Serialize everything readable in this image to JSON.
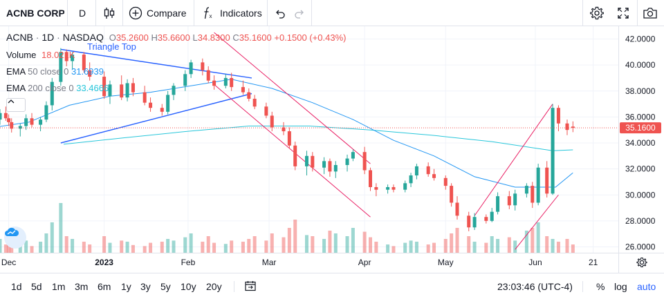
{
  "toolbar": {
    "symbol": "ACNB CORP",
    "interval": "D",
    "compare_label": "Compare",
    "indicators_label": "Indicators",
    "icons": [
      "candles-icon",
      "plus-circle-icon",
      "fx-icon",
      "undo-icon",
      "redo-icon",
      "settings-icon",
      "fullscreen-icon",
      "camera-icon"
    ]
  },
  "legend": {
    "ticker": "ACNB",
    "interval": "1D",
    "exchange": "NASDAQ",
    "open_label": "O",
    "open": "35.2600",
    "high_label": "H",
    "high": "35.6600",
    "low_label": "L",
    "low": "34.8300",
    "close_label": "C",
    "close": "35.1600",
    "change": "+0.1500 (+0.43%)",
    "volume_label": "Volume",
    "volume": "18.021K",
    "ema50_label": "EMA",
    "ema50_params": "50 close 0",
    "ema50_value": "31.6939",
    "ema200_label": "EMA",
    "ema200_params": "200 close 0",
    "ema200_value": "33.4666"
  },
  "annotations": {
    "pattern_label": "Triangle Top"
  },
  "price_axis": {
    "ticks": [
      "42.0000",
      "40.0000",
      "38.0000",
      "36.0000",
      "34.0000",
      "32.0000",
      "30.0000",
      "28.0000",
      "26.0000"
    ],
    "last_price": "35.1600"
  },
  "time_axis": {
    "ticks": [
      "Dec",
      "2023",
      "Feb",
      "Mar",
      "Apr",
      "May",
      "Jun",
      "21"
    ]
  },
  "bottombar": {
    "ranges": [
      "1d",
      "5d",
      "1m",
      "3m",
      "6m",
      "1y",
      "3y",
      "5y",
      "10y",
      "20y"
    ],
    "clock": "23:03:46 (UTC-4)",
    "percent_label": "%",
    "log_label": "log",
    "auto_label": "auto"
  },
  "colors": {
    "up": "#26a69a",
    "down": "#ef5350",
    "ema50": "#2196f3",
    "ema200": "#26c6da",
    "pattern": "#2962ff",
    "channel": "#e91e63",
    "accent": "#2962ff"
  },
  "chart_data": {
    "type": "candlestick",
    "y_range": [
      25.5,
      42.8
    ],
    "x_range": [
      "2022-11-28",
      "2023-06-23"
    ],
    "candles": [
      [
        "2022-11-28",
        35.8,
        36.6,
        35.4,
        36.3
      ],
      [
        "2022-11-30",
        36.3,
        36.8,
        35.7,
        35.9
      ],
      [
        "2022-12-01",
        35.9,
        36.2,
        35.3,
        35.6
      ],
      [
        "2022-12-02",
        35.6,
        35.9,
        34.8,
        35.1
      ],
      [
        "2022-12-05",
        35.1,
        35.5,
        34.5,
        35.3
      ],
      [
        "2022-12-07",
        35.3,
        36.2,
        35.0,
        35.9
      ],
      [
        "2022-12-09",
        35.9,
        36.3,
        35.2,
        35.4
      ],
      [
        "2022-12-12",
        35.4,
        36.0,
        34.9,
        35.8
      ],
      [
        "2022-12-14",
        35.8,
        37.2,
        35.6,
        36.9
      ],
      [
        "2022-12-16",
        36.9,
        39.0,
        36.5,
        38.7
      ],
      [
        "2022-12-19",
        38.7,
        41.3,
        38.4,
        41.0
      ],
      [
        "2022-12-21",
        41.0,
        41.2,
        39.9,
        40.3
      ],
      [
        "2022-12-23",
        40.3,
        41.0,
        39.7,
        40.8
      ],
      [
        "2022-12-27",
        40.8,
        41.0,
        39.4,
        39.6
      ],
      [
        "2022-12-29",
        39.6,
        40.2,
        38.8,
        39.1
      ],
      [
        "2023-01-03",
        39.1,
        39.5,
        37.4,
        37.6
      ],
      [
        "2023-01-05",
        37.6,
        38.8,
        37.0,
        38.5
      ],
      [
        "2023-01-09",
        38.5,
        39.2,
        37.3,
        37.5
      ],
      [
        "2023-01-11",
        37.5,
        38.9,
        37.2,
        38.6
      ],
      [
        "2023-01-13",
        38.6,
        39.0,
        37.6,
        37.9
      ],
      [
        "2023-01-17",
        37.9,
        38.4,
        36.9,
        37.1
      ],
      [
        "2023-01-19",
        37.1,
        37.5,
        36.4,
        36.7
      ],
      [
        "2023-01-23",
        36.7,
        37.0,
        36.1,
        36.4
      ],
      [
        "2023-01-25",
        36.4,
        38.0,
        36.2,
        37.7
      ],
      [
        "2023-01-27",
        37.7,
        38.6,
        37.3,
        38.4
      ],
      [
        "2023-01-31",
        38.4,
        39.6,
        38.0,
        39.3
      ],
      [
        "2023-02-02",
        39.3,
        40.4,
        39.0,
        40.2
      ],
      [
        "2023-02-06",
        40.2,
        40.5,
        39.2,
        39.6
      ],
      [
        "2023-02-08",
        39.6,
        39.9,
        38.6,
        38.8
      ],
      [
        "2023-02-10",
        38.8,
        39.2,
        38.1,
        38.4
      ],
      [
        "2023-02-14",
        38.4,
        39.3,
        38.2,
        39.0
      ],
      [
        "2023-02-16",
        39.0,
        39.4,
        38.0,
        38.3
      ],
      [
        "2023-02-20",
        38.3,
        38.8,
        37.7,
        37.9
      ],
      [
        "2023-02-22",
        37.9,
        38.2,
        37.2,
        37.4
      ],
      [
        "2023-02-24",
        37.4,
        37.7,
        36.6,
        36.8
      ],
      [
        "2023-02-28",
        36.8,
        37.1,
        35.9,
        36.1
      ],
      [
        "2023-03-02",
        36.1,
        36.4,
        34.9,
        35.2
      ],
      [
        "2023-03-06",
        35.2,
        35.6,
        34.6,
        34.9
      ],
      [
        "2023-03-08",
        34.9,
        35.2,
        33.6,
        33.8
      ],
      [
        "2023-03-10",
        33.8,
        34.1,
        31.9,
        32.2
      ],
      [
        "2023-03-14",
        32.2,
        33.4,
        31.5,
        33.0
      ],
      [
        "2023-03-16",
        33.0,
        33.3,
        31.8,
        32.1
      ],
      [
        "2023-03-20",
        32.1,
        32.9,
        31.6,
        32.6
      ],
      [
        "2023-03-22",
        32.6,
        32.8,
        31.4,
        31.8
      ],
      [
        "2023-03-24",
        31.8,
        32.6,
        31.3,
        32.3
      ],
      [
        "2023-03-28",
        32.3,
        33.1,
        31.8,
        32.8
      ],
      [
        "2023-03-30",
        32.8,
        33.5,
        32.6,
        33.3
      ],
      [
        "2023-04-03",
        33.3,
        33.7,
        31.6,
        31.9
      ],
      [
        "2023-04-05",
        31.9,
        32.1,
        30.3,
        30.6
      ],
      [
        "2023-04-07",
        30.6,
        30.9,
        29.9,
        30.4
      ],
      [
        "2023-04-11",
        30.4,
        30.8,
        30.1,
        30.6
      ],
      [
        "2023-04-13",
        30.6,
        30.8,
        30.2,
        30.4
      ],
      [
        "2023-04-17",
        30.4,
        31.1,
        30.2,
        30.9
      ],
      [
        "2023-04-19",
        30.9,
        31.7,
        30.6,
        31.5
      ],
      [
        "2023-04-21",
        31.5,
        32.4,
        31.2,
        32.2
      ],
      [
        "2023-04-25",
        32.2,
        32.5,
        31.4,
        31.6
      ],
      [
        "2023-04-27",
        31.6,
        32.0,
        31.1,
        31.3
      ],
      [
        "2023-05-01",
        31.3,
        31.5,
        30.4,
        30.7
      ],
      [
        "2023-05-03",
        30.7,
        30.9,
        29.1,
        29.4
      ],
      [
        "2023-05-05",
        29.4,
        29.9,
        28.1,
        28.4
      ],
      [
        "2023-05-09",
        28.4,
        28.7,
        27.2,
        27.5
      ],
      [
        "2023-05-11",
        27.5,
        28.6,
        27.3,
        28.3
      ],
      [
        "2023-05-15",
        28.3,
        28.5,
        27.8,
        28.0
      ],
      [
        "2023-05-17",
        28.0,
        29.0,
        27.9,
        28.7
      ],
      [
        "2023-05-19",
        28.7,
        30.2,
        28.5,
        29.9
      ],
      [
        "2023-05-23",
        29.9,
        30.3,
        28.9,
        29.2
      ],
      [
        "2023-05-25",
        29.2,
        30.4,
        28.8,
        30.1
      ],
      [
        "2023-05-29",
        30.1,
        30.9,
        29.8,
        30.7
      ],
      [
        "2023-05-31",
        30.7,
        31.0,
        29.0,
        29.4
      ],
      [
        "2023-06-02",
        29.4,
        32.4,
        29.2,
        32.1
      ],
      [
        "2023-06-05",
        32.1,
        32.6,
        29.8,
        30.1
      ],
      [
        "2023-06-07",
        30.1,
        37.0,
        30.0,
        36.7
      ],
      [
        "2023-06-09",
        36.7,
        36.9,
        34.9,
        35.5
      ],
      [
        "2023-06-12",
        35.5,
        35.8,
        34.6,
        35.0
      ],
      [
        "2023-06-14",
        35.26,
        35.66,
        34.83,
        35.16
      ]
    ],
    "ema50": [
      [
        "2022-11-23",
        35.1
      ],
      [
        "2022-12-08",
        35.6
      ],
      [
        "2022-12-22",
        36.9
      ],
      [
        "2023-01-05",
        37.6
      ],
      [
        "2023-01-19",
        37.9
      ],
      [
        "2023-02-02",
        38.4
      ],
      [
        "2023-02-16",
        38.9
      ],
      [
        "2023-03-02",
        38.2
      ],
      [
        "2023-03-16",
        37.1
      ],
      [
        "2023-03-30",
        35.8
      ],
      [
        "2023-04-13",
        34.2
      ],
      [
        "2023-04-27",
        33.0
      ],
      [
        "2023-05-11",
        31.4
      ],
      [
        "2023-05-25",
        30.6
      ],
      [
        "2023-06-08",
        30.6
      ],
      [
        "2023-06-14",
        31.7
      ]
    ],
    "ema200": [
      [
        "2022-12-20",
        33.9
      ],
      [
        "2023-01-10",
        34.4
      ],
      [
        "2023-02-01",
        34.9
      ],
      [
        "2023-02-22",
        35.3
      ],
      [
        "2023-03-15",
        35.3
      ],
      [
        "2023-04-05",
        35.0
      ],
      [
        "2023-04-26",
        34.6
      ],
      [
        "2023-05-17",
        34.1
      ],
      [
        "2023-06-07",
        33.4
      ],
      [
        "2023-06-14",
        33.47
      ]
    ],
    "volume_ylim": [
      0,
      1
    ]
  }
}
